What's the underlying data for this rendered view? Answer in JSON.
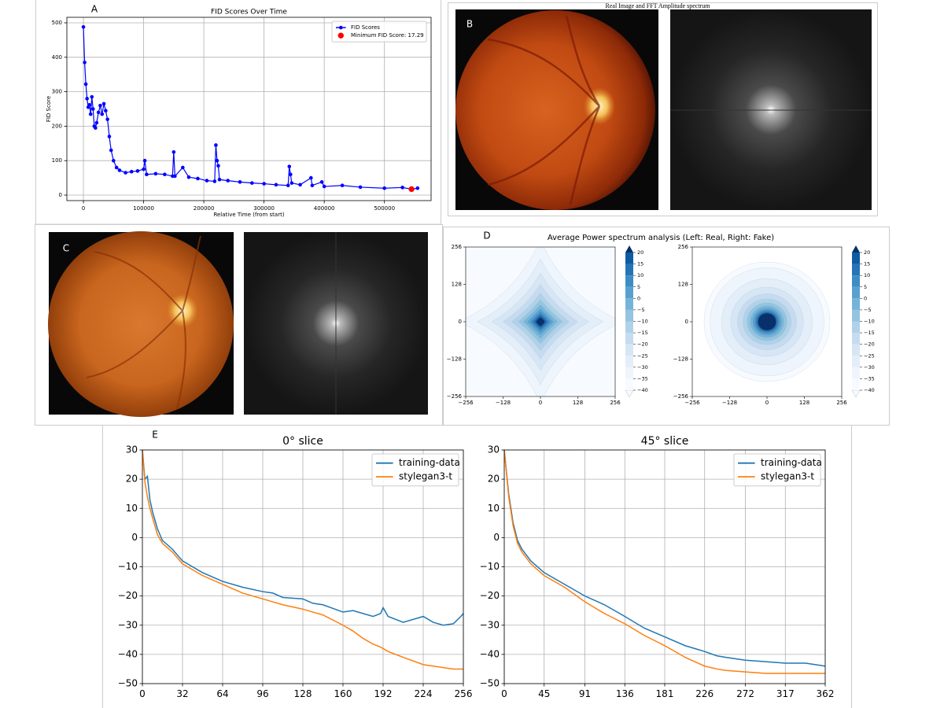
{
  "panel_labels": [
    "A",
    "B",
    "C",
    "D",
    "E"
  ],
  "image_title": "Real Image and FFT Amplitude spectrum",
  "chart_data": [
    {
      "type": "line",
      "title": "FID Scores Over Time",
      "xlabel": "Relative Time (from start)",
      "ylabel": "FID Score",
      "xlim": [
        -27500,
        577500
      ],
      "ylim": [
        -16,
        516
      ],
      "xticks": [
        0,
        100000,
        200000,
        300000,
        400000,
        500000
      ],
      "yticks": [
        0,
        100,
        200,
        300,
        400,
        500
      ],
      "grid": true,
      "legend": "upper right",
      "series": [
        {
          "name": "FID Scores",
          "color": "#0000ff",
          "marker": true,
          "line": true,
          "x": [
            0,
            2000,
            4000,
            6000,
            8000,
            10000,
            12000,
            14000,
            16000,
            18000,
            20000,
            22000,
            25000,
            28000,
            31000,
            34000,
            37000,
            40000,
            43000,
            46000,
            50000,
            55000,
            60000,
            70000,
            80000,
            90000,
            100000,
            102000,
            105000,
            120000,
            135000,
            148000,
            150000,
            152000,
            165000,
            175000,
            190000,
            205000,
            218000,
            220000,
            222000,
            224000,
            226000,
            240000,
            260000,
            280000,
            300000,
            320000,
            340000,
            342000,
            344000,
            346000,
            360000,
            378000,
            380000,
            396000,
            400000,
            430000,
            460000,
            500000,
            530000,
            545000,
            555000
          ],
          "values": [
            488,
            385,
            322,
            280,
            255,
            262,
            235,
            285,
            250,
            200,
            195,
            210,
            240,
            260,
            235,
            265,
            245,
            220,
            170,
            130,
            100,
            80,
            72,
            65,
            68,
            70,
            75,
            100,
            60,
            62,
            60,
            55,
            125,
            55,
            80,
            52,
            48,
            42,
            40,
            145,
            100,
            85,
            45,
            42,
            38,
            35,
            33,
            30,
            28,
            83,
            60,
            35,
            30,
            50,
            28,
            38,
            25,
            28,
            23,
            20,
            22,
            17.29,
            20
          ]
        },
        {
          "name": "Minimum FID Score: 17.29",
          "color": "#ff0000",
          "marker": true,
          "line": false,
          "x": [
            545000
          ],
          "values": [
            17.29
          ]
        }
      ]
    },
    {
      "type": "contour",
      "title": "Average Power spectrum analysis (Left: Real, Right: Fake)",
      "xlim": [
        -256,
        256
      ],
      "ylim": [
        -256,
        256
      ],
      "xticks": [
        {
          "value": -256,
          "label": "−256"
        },
        {
          "value": -128,
          "label": "−128"
        },
        0,
        128,
        256
      ],
      "yticks": [
        {
          "value": -256,
          "label": "−256"
        },
        {
          "value": -128,
          "label": "−128"
        },
        0,
        128,
        256
      ],
      "cticks": [
        20,
        15,
        10,
        5,
        0,
        {
          "value": -5,
          "label": "−5"
        },
        {
          "value": -10,
          "label": "−10"
        },
        {
          "value": -15,
          "label": "−15"
        },
        {
          "value": -20,
          "label": "−20"
        },
        {
          "value": -25,
          "label": "−25"
        },
        {
          "value": -30,
          "label": "−30"
        },
        {
          "value": -35,
          "label": "−35"
        },
        {
          "value": -40,
          "label": "−40"
        }
      ]
    },
    {
      "type": "line",
      "title": "0° slice",
      "xlim": [
        0,
        256
      ],
      "ylim": [
        -50,
        30
      ],
      "xticks": [
        0,
        32,
        64,
        96,
        128,
        160,
        192,
        224,
        256
      ],
      "yticks": [
        {
          "value": -50,
          "label": "−50"
        },
        {
          "value": -40,
          "label": "−40"
        },
        {
          "value": -30,
          "label": "−30"
        },
        {
          "value": -20,
          "label": "−20"
        },
        {
          "value": -10,
          "label": "−10"
        },
        0,
        10,
        20,
        30
      ],
      "grid": true,
      "legend": "upper right",
      "series": [
        {
          "name": "training-data",
          "color": "#1f77b4",
          "marker": false,
          "line": true,
          "x": [
            0,
            2,
            4,
            6,
            8,
            12,
            16,
            24,
            32,
            48,
            64,
            80,
            96,
            104,
            112,
            128,
            136,
            144,
            160,
            168,
            176,
            184,
            190,
            192,
            196,
            208,
            224,
            232,
            240,
            248,
            254,
            256
          ],
          "values": [
            30,
            20,
            21,
            13,
            9,
            3,
            -1,
            -4,
            -8,
            -12,
            -15,
            -17,
            -18.5,
            -19,
            -20.5,
            -21,
            -22.5,
            -23,
            -25.5,
            -25,
            -26,
            -27,
            -26,
            -24,
            -27,
            -29,
            -27,
            -29,
            -30,
            -29.5,
            -27,
            -26
          ]
        },
        {
          "name": "stylegan3-t",
          "color": "#ff7f0e",
          "marker": false,
          "line": true,
          "x": [
            0,
            2,
            4,
            6,
            8,
            12,
            16,
            24,
            32,
            48,
            64,
            80,
            96,
            104,
            112,
            128,
            136,
            144,
            160,
            168,
            176,
            184,
            190,
            192,
            196,
            208,
            224,
            232,
            240,
            248,
            254,
            256
          ],
          "values": [
            30,
            19,
            14,
            10,
            7,
            1,
            -2,
            -5,
            -9,
            -13,
            -16,
            -19,
            -21,
            -22,
            -23,
            -24.5,
            -25.5,
            -26.5,
            -30,
            -32,
            -34.5,
            -36.5,
            -37.5,
            -38,
            -39,
            -41,
            -43.5,
            -44,
            -44.5,
            -45,
            -45,
            -45
          ]
        }
      ]
    },
    {
      "type": "line",
      "title": "45° slice",
      "xlim": [
        0,
        362
      ],
      "ylim": [
        -50,
        30
      ],
      "xticks": [
        0,
        45,
        91,
        136,
        181,
        226,
        272,
        317,
        362
      ],
      "yticks": [
        {
          "value": -50,
          "label": "−50"
        },
        {
          "value": -40,
          "label": "−40"
        },
        {
          "value": -30,
          "label": "−30"
        },
        {
          "value": -20,
          "label": "−20"
        },
        {
          "value": -10,
          "label": "−10"
        },
        0,
        10,
        20,
        30
      ],
      "grid": true,
      "legend": "upper right",
      "series": [
        {
          "name": "training-data",
          "color": "#1f77b4",
          "marker": false,
          "line": true,
          "x": [
            0,
            5,
            10,
            15,
            20,
            30,
            45,
            68,
            91,
            113,
            136,
            158,
            181,
            204,
            226,
            240,
            250,
            272,
            295,
            317,
            340,
            362
          ],
          "values": [
            30,
            15,
            5,
            -1,
            -4,
            -8,
            -12,
            -16,
            -20,
            -23,
            -27,
            -31,
            -34,
            -37,
            -39,
            -40.5,
            -41,
            -42,
            -42.5,
            -43,
            -43,
            -44
          ]
        },
        {
          "name": "stylegan3-t",
          "color": "#ff7f0e",
          "marker": false,
          "line": true,
          "x": [
            0,
            5,
            10,
            15,
            20,
            30,
            45,
            68,
            91,
            113,
            136,
            158,
            181,
            204,
            226,
            240,
            250,
            272,
            295,
            317,
            340,
            362
          ],
          "values": [
            30,
            14,
            4,
            -2,
            -5,
            -9,
            -13,
            -17,
            -22,
            -26,
            -29.5,
            -33.5,
            -37,
            -41,
            -44,
            -45,
            -45.5,
            -46,
            -46.5,
            -46.5,
            -46.5,
            -46.5
          ]
        }
      ]
    }
  ]
}
